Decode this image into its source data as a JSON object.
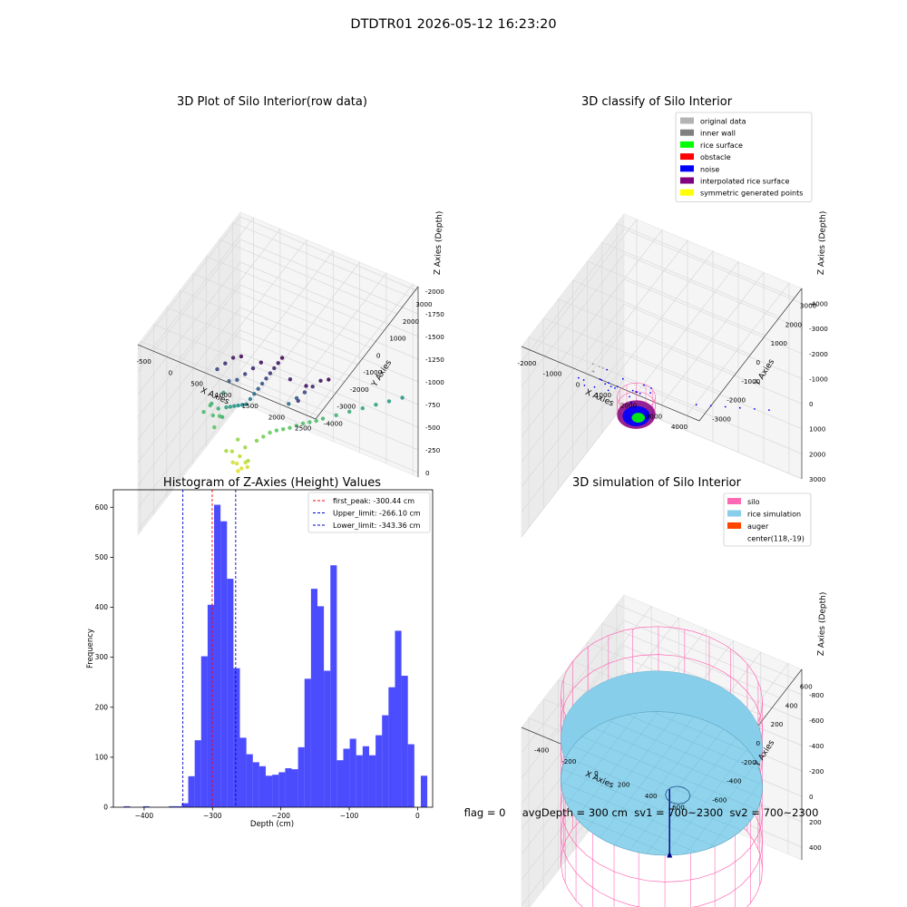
{
  "figure": {
    "suptitle": "DTDTR01 2026-05-12 16:23:20",
    "footer": "flag = 0     avgDepth = 300 cm  sv1 = 700~2300  sv2 = 700~2300"
  },
  "chart_data": [
    {
      "type": "scatter",
      "projection": "3d",
      "title": "3D Plot of Silo Interior(row data)",
      "xlabel": "X Axies",
      "ylabel": "Y Axies",
      "zlabel": "Z Axies (Depth)",
      "xticks": [
        "-500",
        "0",
        "500",
        "1000",
        "1500",
        "2000",
        "2500"
      ],
      "yticks": [
        "-4000",
        "-3000",
        "-2000",
        "-1000",
        "0",
        "1000",
        "2000",
        "3000"
      ],
      "zticks": [
        "-2000",
        "-1750",
        "-1500",
        "-1250",
        "-1000",
        "-750",
        "-500",
        "-250",
        "0"
      ],
      "xlim": [
        -750,
        2600
      ],
      "ylim": [
        -4200,
        3600
      ],
      "zlim": [
        -2050,
        50
      ],
      "colormap": "viridis",
      "points": [
        {
          "x": 0,
          "y": 300,
          "z": -80
        },
        {
          "x": 100,
          "y": 250,
          "z": -60
        },
        {
          "x": 60,
          "y": 150,
          "z": -40
        },
        {
          "x": -50,
          "y": 200,
          "z": -100
        },
        {
          "x": 150,
          "y": 350,
          "z": -120
        },
        {
          "x": 30,
          "y": 400,
          "z": -150
        },
        {
          "x": 200,
          "y": 300,
          "z": -90
        },
        {
          "x": -100,
          "y": 350,
          "z": -180
        },
        {
          "x": 250,
          "y": 150,
          "z": -200
        },
        {
          "x": -150,
          "y": 100,
          "z": -220
        },
        {
          "x": 120,
          "y": 450,
          "z": -260
        },
        {
          "x": -30,
          "y": 500,
          "z": -300
        },
        {
          "x": 300,
          "y": 600,
          "z": -350
        },
        {
          "x": 400,
          "y": 700,
          "z": -400
        },
        {
          "x": 500,
          "y": 800,
          "z": -450
        },
        {
          "x": 600,
          "y": 900,
          "z": -480
        },
        {
          "x": 700,
          "y": 1000,
          "z": -500
        },
        {
          "x": 800,
          "y": 1100,
          "z": -520
        },
        {
          "x": 900,
          "y": 1200,
          "z": -550
        },
        {
          "x": 1000,
          "y": 1300,
          "z": -580
        },
        {
          "x": 1100,
          "y": 1400,
          "z": -600
        },
        {
          "x": 1200,
          "y": 1500,
          "z": -620
        },
        {
          "x": 1300,
          "y": 1600,
          "z": -650
        },
        {
          "x": 1500,
          "y": 1800,
          "z": -700
        },
        {
          "x": 1700,
          "y": 2000,
          "z": -750
        },
        {
          "x": 1900,
          "y": 2200,
          "z": -800
        },
        {
          "x": 2100,
          "y": 2400,
          "z": -850
        },
        {
          "x": 2300,
          "y": 2600,
          "z": -900
        },
        {
          "x": 2500,
          "y": 2800,
          "z": -950
        },
        {
          "x": -300,
          "y": -200,
          "z": -500
        },
        {
          "x": -350,
          "y": -100,
          "z": -600
        },
        {
          "x": -400,
          "y": 0,
          "z": -700
        },
        {
          "x": -450,
          "y": 100,
          "z": -650
        },
        {
          "x": -300,
          "y": 200,
          "z": -550
        },
        {
          "x": -200,
          "y": -300,
          "z": -750
        },
        {
          "x": -250,
          "y": 300,
          "z": -800
        },
        {
          "x": -100,
          "y": -400,
          "z": -700
        },
        {
          "x": -500,
          "y": -200,
          "z": -620
        },
        {
          "x": 0,
          "y": -500,
          "z": -850
        },
        {
          "x": 100,
          "y": -600,
          "z": -900
        },
        {
          "x": 200,
          "y": -700,
          "z": -950
        },
        {
          "x": 300,
          "y": -800,
          "z": -1000
        },
        {
          "x": 400,
          "y": -900,
          "z": -1050
        },
        {
          "x": 500,
          "y": -1000,
          "z": -1100
        },
        {
          "x": 600,
          "y": -1100,
          "z": -1200
        },
        {
          "x": 700,
          "y": -1200,
          "z": -1300
        },
        {
          "x": 800,
          "y": -1300,
          "z": -1400
        },
        {
          "x": 900,
          "y": -1400,
          "z": -1500
        },
        {
          "x": 1000,
          "y": -1500,
          "z": -1600
        },
        {
          "x": 1100,
          "y": -1600,
          "z": -1700
        },
        {
          "x": 1200,
          "y": -1700,
          "z": -1800
        },
        {
          "x": 1300,
          "y": -1800,
          "z": -1900
        },
        {
          "x": 1400,
          "y": -1900,
          "z": -2000
        },
        {
          "x": 1600,
          "y": -2100,
          "z": -1850
        },
        {
          "x": 1800,
          "y": -2300,
          "z": -1700
        },
        {
          "x": 2000,
          "y": -2500,
          "z": -1950
        },
        {
          "x": 200,
          "y": -2000,
          "z": -1600
        },
        {
          "x": 400,
          "y": -2200,
          "z": -1750
        },
        {
          "x": 600,
          "y": -2400,
          "z": -1900
        },
        {
          "x": 800,
          "y": -2600,
          "z": -2000
        },
        {
          "x": 300,
          "y": -1500,
          "z": -1400
        },
        {
          "x": 500,
          "y": -1700,
          "z": -1500
        },
        {
          "x": 700,
          "y": -1900,
          "z": -1650
        },
        {
          "x": 900,
          "y": -2100,
          "z": -1800
        },
        {
          "x": 1100,
          "y": -2300,
          "z": -1950
        },
        {
          "x": 1300,
          "y": -1000,
          "z": -1300
        },
        {
          "x": 1500,
          "y": -1200,
          "z": -1450
        },
        {
          "x": 1700,
          "y": -1400,
          "z": -1600
        },
        {
          "x": 1900,
          "y": -1600,
          "z": -1750
        },
        {
          "x": 2100,
          "y": -1800,
          "z": -1900
        },
        {
          "x": 2300,
          "y": -2000,
          "z": -2000
        }
      ]
    },
    {
      "type": "scatter",
      "projection": "3d",
      "title": "3D classify of Silo Interior",
      "xlabel": "X Axies",
      "ylabel": "Y Axies",
      "zlabel": "Z Axies (Depth)",
      "xticks": [
        "-2000",
        "-1000",
        "0",
        "1000",
        "2000",
        "3000",
        "4000"
      ],
      "yticks": [
        "-3000",
        "-2000",
        "-1000",
        "0",
        "1000",
        "2000",
        "3000"
      ],
      "zticks": [
        "-4000",
        "-3000",
        "-2000",
        "-1000",
        "0",
        "1000",
        "2000",
        "3000"
      ],
      "xlim": [
        -2500,
        4500
      ],
      "ylim": [
        -3500,
        3500
      ],
      "zlim": [
        -4600,
        3000
      ],
      "legend": [
        {
          "label": "original data",
          "color": "#b3b3b3"
        },
        {
          "label": "inner wall",
          "color": "#808080"
        },
        {
          "label": "rice surface",
          "color": "#00ff00"
        },
        {
          "label": "obstacle",
          "color": "#ff0000"
        },
        {
          "label": "noise",
          "color": "#0000ff"
        },
        {
          "label": "interpolated rice surface",
          "color": "#800080"
        },
        {
          "label": "symmetric generated points",
          "color": "#ffff00"
        }
      ],
      "legend_position": "upper right",
      "silo_wall_radius": 650,
      "rice_surface_depth": -300,
      "noise": [
        {
          "x": -1000,
          "y": -1800,
          "z": -2400
        },
        {
          "x": -800,
          "y": -2200,
          "z": -3000
        },
        {
          "x": -500,
          "y": -1500,
          "z": -2600
        },
        {
          "x": -200,
          "y": -2500,
          "z": -3200
        },
        {
          "x": 0,
          "y": -2000,
          "z": -3600
        },
        {
          "x": 200,
          "y": -1800,
          "z": -2800
        },
        {
          "x": 400,
          "y": -2600,
          "z": -3400
        },
        {
          "x": 600,
          "y": -1500,
          "z": -2400
        },
        {
          "x": 800,
          "y": -2300,
          "z": -3800
        },
        {
          "x": 1000,
          "y": -1700,
          "z": -2900
        },
        {
          "x": 1200,
          "y": -2400,
          "z": -3100
        },
        {
          "x": 1400,
          "y": -1900,
          "z": -3500
        },
        {
          "x": 1600,
          "y": -2800,
          "z": -4000
        },
        {
          "x": -600,
          "y": -2900,
          "z": -3700
        },
        {
          "x": 300,
          "y": -3000,
          "z": -4100
        },
        {
          "x": 700,
          "y": -3100,
          "z": -4200
        },
        {
          "x": 1100,
          "y": -3200,
          "z": -4300
        },
        {
          "x": -300,
          "y": -1200,
          "z": -2200
        },
        {
          "x": 500,
          "y": -1100,
          "z": -2300
        },
        {
          "x": 900,
          "y": -1300,
          "z": -2500
        },
        {
          "x": 1300,
          "y": -2600,
          "z": -3300
        },
        {
          "x": 1800,
          "y": -2100,
          "z": -3700
        },
        {
          "x": 2000,
          "y": -2500,
          "z": -3900
        },
        {
          "x": 100,
          "y": -2300,
          "z": -3300
        },
        {
          "x": 1500,
          "y": 1500,
          "z": -200
        },
        {
          "x": 1900,
          "y": 1800,
          "z": -100
        },
        {
          "x": 2300,
          "y": 2100,
          "z": 0
        },
        {
          "x": 2700,
          "y": 2400,
          "z": 100
        },
        {
          "x": 3100,
          "y": 2700,
          "z": 200
        },
        {
          "x": 3500,
          "y": 3000,
          "z": 300
        }
      ],
      "original": [
        {
          "x": -1600,
          "y": -200,
          "z": -1500
        },
        {
          "x": -1500,
          "y": -300,
          "z": -1600
        },
        {
          "x": -1400,
          "y": -100,
          "z": -1700
        },
        {
          "x": -1300,
          "y": -400,
          "z": -1500
        },
        {
          "x": -1700,
          "y": 0,
          "z": -1600
        },
        {
          "x": -1200,
          "y": -200,
          "z": -1800
        },
        {
          "x": -1100,
          "y": -300,
          "z": -1400
        }
      ]
    },
    {
      "type": "histogram",
      "title": "Histogram of Z-Axies (Height) Values",
      "xlabel": "Depth (cm)",
      "ylabel": "Frequency",
      "xticks": [
        "-400",
        "-300",
        "-200",
        "-100",
        "0"
      ],
      "yticks": [
        "0",
        "100",
        "200",
        "300",
        "400",
        "500",
        "600"
      ],
      "xlim": [
        -445,
        22
      ],
      "ylim": [
        0,
        635
      ],
      "bar_color": "#0000ff",
      "bins_start": -430,
      "bin_width": 9.45,
      "counts": [
        2,
        0,
        0,
        2,
        0,
        0,
        0,
        2,
        2,
        8,
        62,
        134,
        302,
        405,
        605,
        572,
        457,
        278,
        139,
        106,
        90,
        82,
        63,
        65,
        70,
        78,
        76,
        120,
        257,
        437,
        402,
        273,
        484,
        94,
        117,
        137,
        104,
        122,
        104,
        144,
        184,
        240,
        353,
        263,
        126,
        0,
        63
      ],
      "vlines": [
        {
          "label": "first_peak: -300.44 cm",
          "x": -300.44,
          "color": "#ff0000"
        },
        {
          "label": "Upper_limit: -266.10 cm",
          "x": -266.1,
          "color": "#0000cc"
        },
        {
          "label": "Lower_limit: -343.36 cm",
          "x": -343.36,
          "color": "#0000cc"
        }
      ],
      "legend_position": "upper right"
    },
    {
      "type": "surface",
      "projection": "3d",
      "title": "3D simulation of Silo Interior",
      "xlabel": "X Axies",
      "ylabel": "Y Axies",
      "zlabel": "Z Axies (Depth)",
      "xticks": [
        "-400",
        "-200",
        "0",
        "200",
        "400",
        "600"
      ],
      "yticks": [
        "-600",
        "-400",
        "-200",
        "0",
        "200",
        "400",
        "600"
      ],
      "zticks": [
        "-800",
        "-600",
        "-400",
        "-200",
        "0",
        "200",
        "400"
      ],
      "xlim": [
        -600,
        700
      ],
      "ylim": [
        -700,
        700
      ],
      "zlim": [
        -1000,
        500
      ],
      "legend": [
        {
          "label": "silo",
          "color": "#ff69b4"
        },
        {
          "label": "rice simulation",
          "color": "#87ceeb"
        },
        {
          "label": "auger",
          "color": "#ff4500"
        },
        {
          "label": "center(118,-19)",
          "color": ""
        }
      ],
      "legend_position": "upper right",
      "silo_radius": 650,
      "silo_top": 320,
      "silo_bottom": -1000,
      "rice_level": -330,
      "center": {
        "x": 118,
        "y": -19
      }
    }
  ]
}
